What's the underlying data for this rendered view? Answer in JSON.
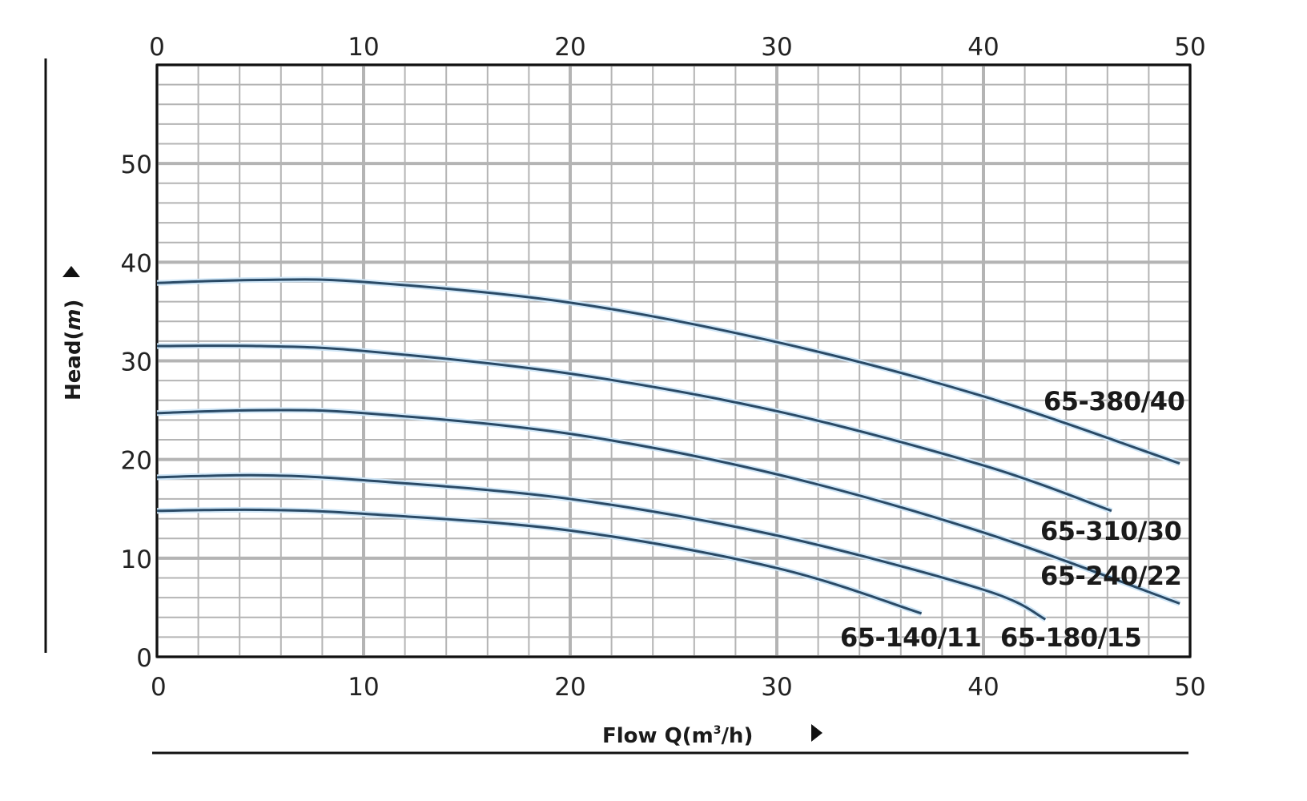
{
  "chart_data": {
    "type": "line",
    "title": "",
    "xlabel": "Flow Q(m³/h)",
    "xlabel_parts": {
      "main": "Flow Q(m",
      "sup": "3",
      "tail": "/h)"
    },
    "ylabel": "Head(m)",
    "ylabel_parts": {
      "main": "Head(",
      "unit": "m",
      "tail": ")"
    },
    "xlim": [
      0,
      50
    ],
    "ylim": [
      0,
      60
    ],
    "x_ticks": [
      "0",
      "10",
      "20",
      "30",
      "40",
      "50"
    ],
    "x_ticks_top": [
      "0",
      "10",
      "20",
      "30",
      "40",
      "50"
    ],
    "y_ticks": [
      "0",
      "10",
      "20",
      "30",
      "40",
      "50"
    ],
    "grid": true,
    "minor_grid_step": {
      "x": 2,
      "y": 2
    },
    "line_color": "#2a4a66",
    "series": [
      {
        "name": "65-380/40",
        "x": [
          0,
          5,
          10,
          20,
          30,
          40,
          49.5
        ],
        "y": [
          37.9,
          38.2,
          38.0,
          35.9,
          31.9,
          26.4,
          19.6
        ]
      },
      {
        "name": "65-310/30",
        "x": [
          0,
          5,
          10,
          20,
          30,
          40,
          46.2
        ],
        "y": [
          31.5,
          31.5,
          31.0,
          28.7,
          24.9,
          19.4,
          14.8
        ]
      },
      {
        "name": "65-240/22",
        "x": [
          0,
          5,
          10,
          20,
          30,
          40,
          49.5
        ],
        "y": [
          24.7,
          25.0,
          24.7,
          22.6,
          18.5,
          12.6,
          5.4
        ]
      },
      {
        "name": "65-180/15",
        "x": [
          0,
          5,
          10,
          20,
          30,
          40,
          43.0
        ],
        "y": [
          18.2,
          18.4,
          17.9,
          16.0,
          12.3,
          6.8,
          3.8
        ]
      },
      {
        "name": "65-140/11",
        "x": [
          0,
          5,
          10,
          20,
          30,
          37.0
        ],
        "y": [
          14.8,
          14.9,
          14.5,
          12.8,
          9.0,
          4.4
        ]
      }
    ]
  }
}
